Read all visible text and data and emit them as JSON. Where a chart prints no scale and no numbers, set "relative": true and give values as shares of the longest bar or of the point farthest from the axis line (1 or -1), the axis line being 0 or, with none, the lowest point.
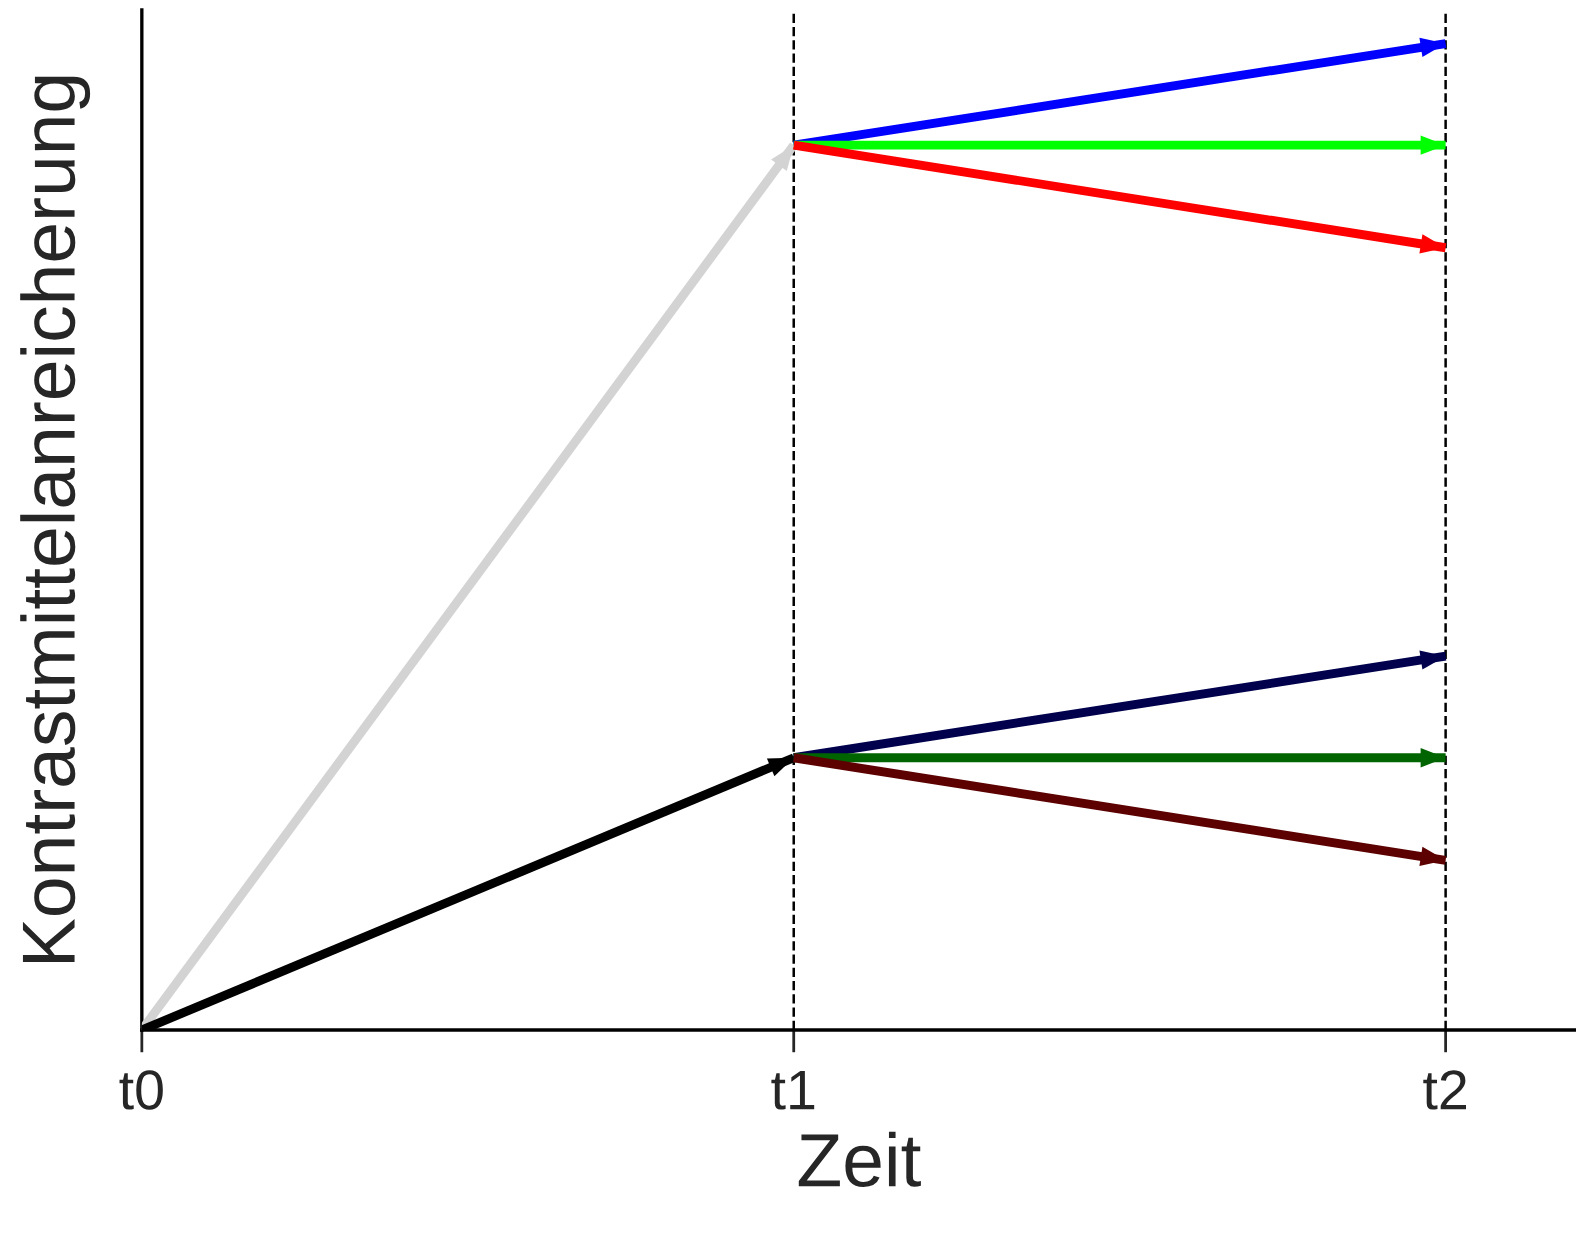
{
  "chart_data": {
    "type": "line",
    "relative": true,
    "xlabel": "Zeit",
    "ylabel": "Kontrastmittelanreicherung",
    "categories": [
      "t0",
      "t1",
      "t2"
    ],
    "series": [
      {
        "color": "#d3d3d3",
        "values": [
          0,
          0.897,
          null
        ]
      },
      {
        "color": "#000000",
        "values": [
          0,
          0.276,
          null
        ]
      },
      {
        "color": "#0000ff",
        "values": [
          null,
          0.897,
          1.0
        ]
      },
      {
        "color": "#00ff00",
        "values": [
          null,
          0.897,
          0.897
        ]
      },
      {
        "color": "#ff0000",
        "values": [
          null,
          0.897,
          0.793
        ]
      },
      {
        "color": "#00004d",
        "values": [
          null,
          0.276,
          0.379
        ]
      },
      {
        "color": "#006400",
        "values": [
          null,
          0.276,
          0.276
        ]
      },
      {
        "color": "#5c0000",
        "values": [
          null,
          0.276,
          0.172
        ]
      }
    ],
    "ref_lines": [
      {
        "axis": "x",
        "value": "t1",
        "color": "#000000",
        "line_style": "dashed"
      },
      {
        "axis": "x",
        "value": "t2",
        "color": "#000000",
        "line_style": "dashed"
      }
    ],
    "grid": false,
    "legend": false,
    "line_style": "solid"
  }
}
